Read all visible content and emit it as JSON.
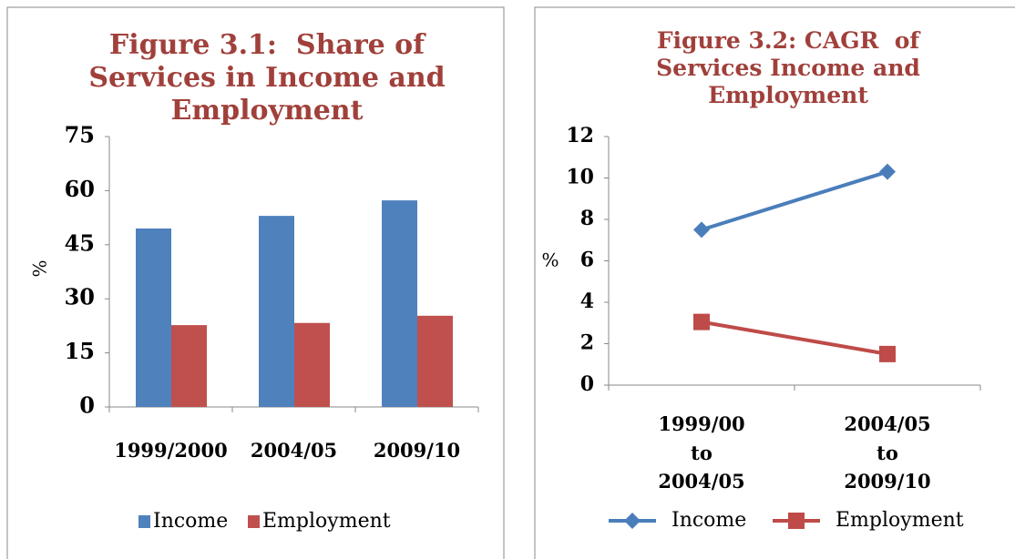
{
  "chart_data": [
    {
      "type": "bar",
      "title": "Figure 3.1:  Share of Services in Income and Employment",
      "y_label": "%",
      "categories": [
        "1999/2000",
        "2004/05",
        "2009/10"
      ],
      "series": [
        {
          "name": "Income",
          "color": "#4f81bd",
          "values": [
            49.5,
            53,
            57.3
          ]
        },
        {
          "name": "Employment",
          "color": "#c0504d",
          "values": [
            22.7,
            23.3,
            25.3
          ]
        }
      ],
      "ylim": [
        0,
        75
      ],
      "yticks": [
        0,
        15,
        30,
        45,
        60,
        75
      ],
      "legend": "bottom"
    },
    {
      "type": "line",
      "title": "Figure 3.2: CAGR  of Services Income and Employment",
      "y_label": "%",
      "categories": [
        "1999/00 to 2004/05",
        "2004/05 to 2009/10"
      ],
      "series": [
        {
          "name": "Income",
          "color": "#4a7ebb",
          "marker": "diamond",
          "values": [
            7.5,
            10.3
          ]
        },
        {
          "name": "Employment",
          "color": "#be4b48",
          "marker": "square",
          "values": [
            3.05,
            1.5
          ]
        }
      ],
      "ylim": [
        0,
        12
      ],
      "yticks": [
        0,
        2,
        4,
        6,
        8,
        10,
        12
      ],
      "legend": "bottom"
    }
  ]
}
